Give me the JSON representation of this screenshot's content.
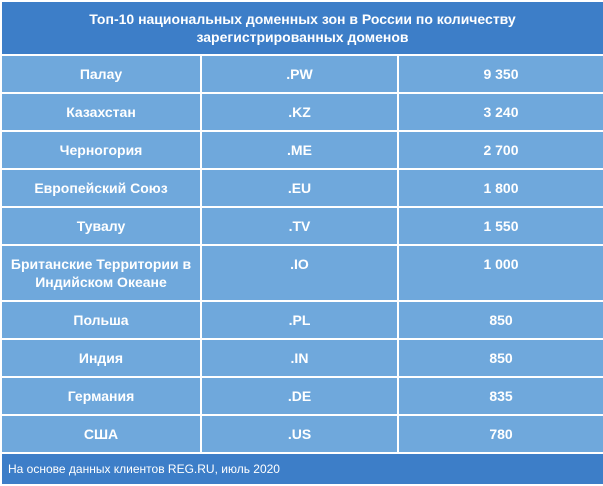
{
  "header": {
    "title": "Топ-10 национальных доменных зон в России по количеству зарегистрированных доменов"
  },
  "table": {
    "rows": [
      [
        "Палау",
        ".PW",
        "9 350"
      ],
      [
        "Казахстан",
        ".KZ",
        "3 240"
      ],
      [
        "Черногория",
        ".ME",
        "2 700"
      ],
      [
        "Европейский Союз",
        ".EU",
        "1 800"
      ],
      [
        "Тувалу",
        ".TV",
        "1 550"
      ],
      [
        "Британские Территории в Индийском Океане",
        ".IO",
        "1 000"
      ],
      [
        "Польша",
        ".PL",
        "850"
      ],
      [
        "Индия",
        ".IN",
        "850"
      ],
      [
        "Германия",
        ".DE",
        "835"
      ],
      [
        "США",
        ".US",
        "780"
      ]
    ]
  },
  "footer": {
    "note": "На основе данных клиентов REG.RU, июль 2020"
  }
}
